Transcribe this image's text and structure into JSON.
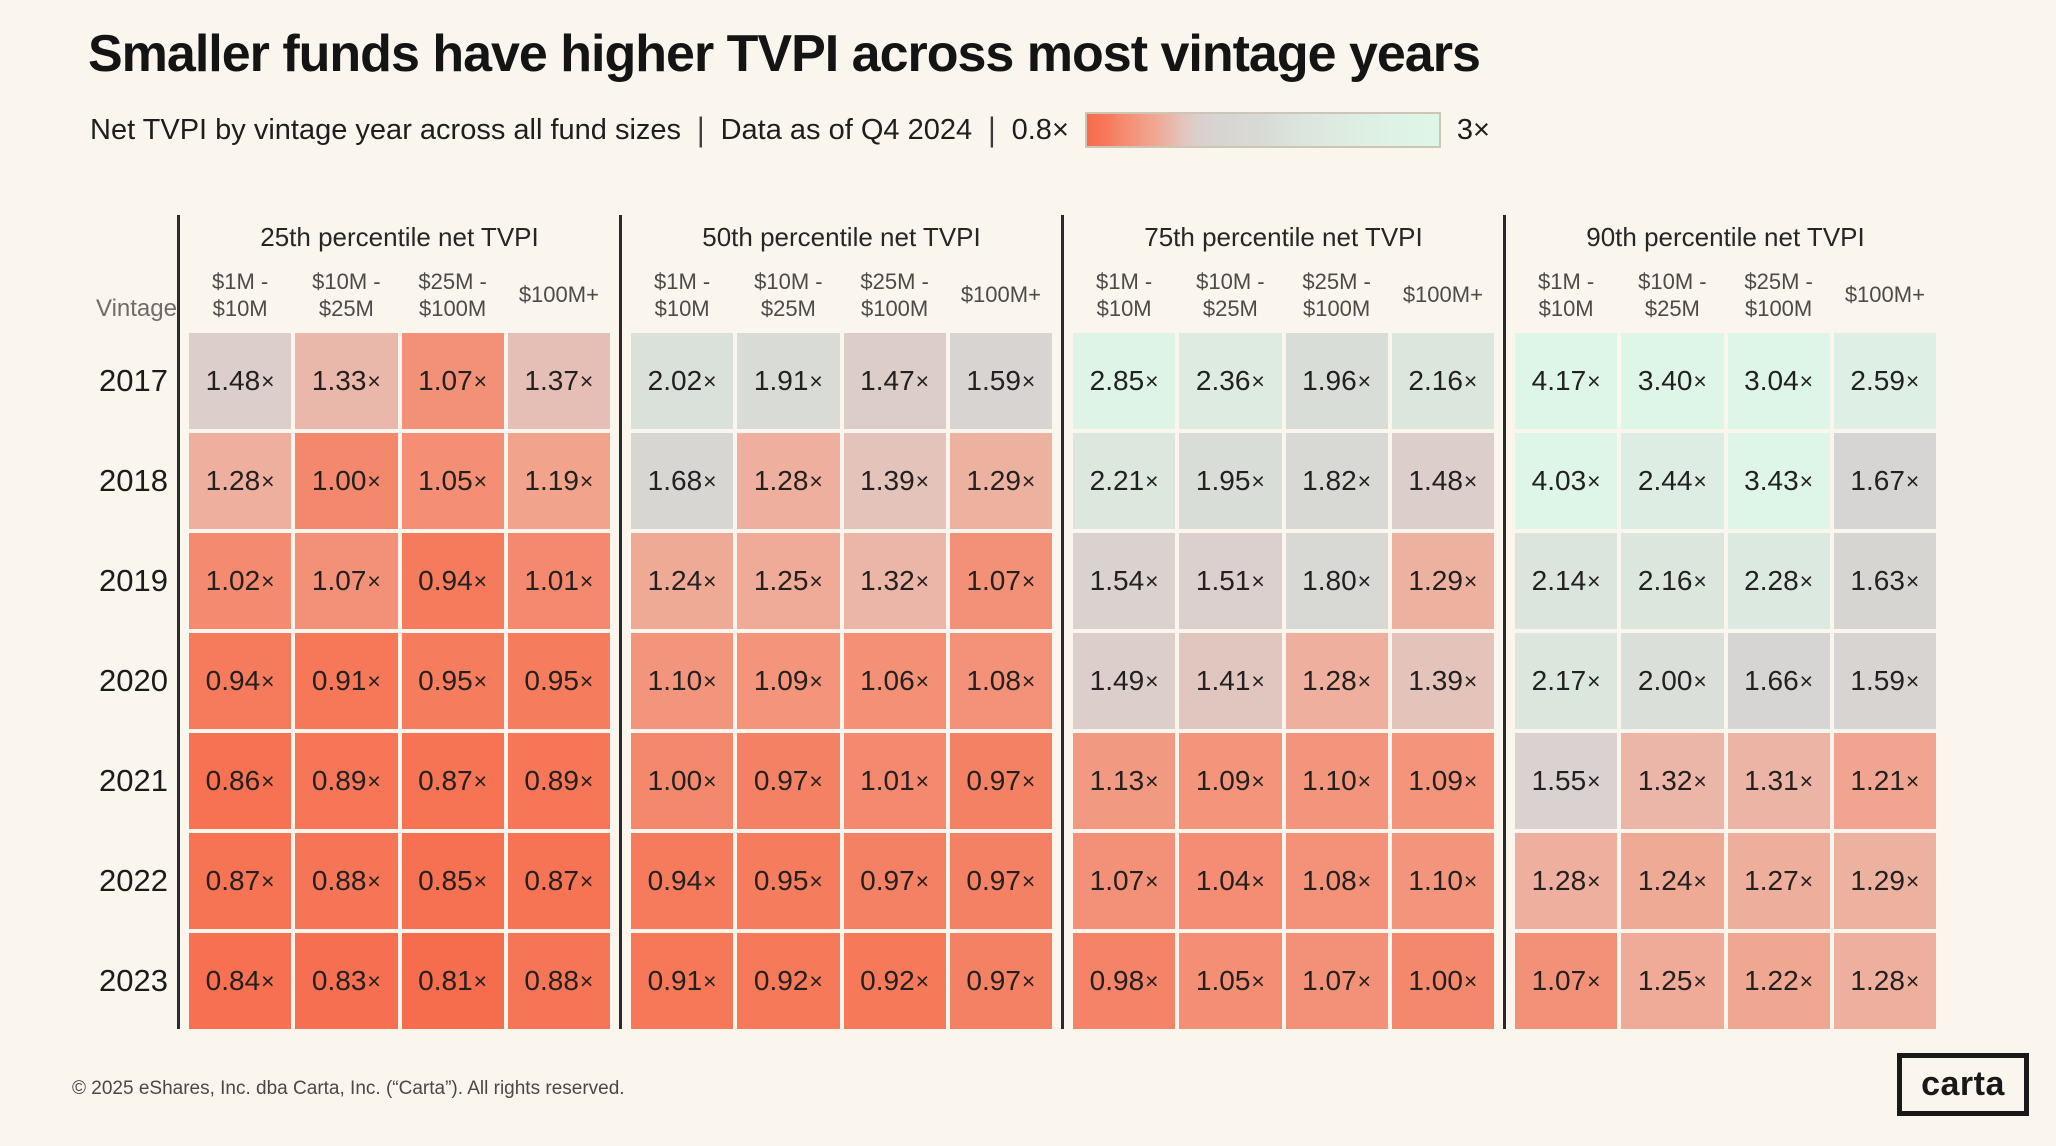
{
  "chart_data": {
    "type": "heatmap",
    "title": "Smaller funds have higher TVPI across most vintage years",
    "subtitle": "Net TVPI by vintage year across all fund sizes",
    "data_as_of": "Data as of Q4 2024",
    "separator": "|",
    "value_suffix": "×",
    "row_axis_label": "Vintage",
    "legend": {
      "min_label": "0.8×",
      "max_label": "3×",
      "domain": [
        0.8,
        3.0
      ]
    },
    "groups": [
      "25th percentile net TVPI",
      "50th percentile net TVPI",
      "75th percentile net TVPI",
      "90th percentile net TVPI"
    ],
    "columns": [
      "$1M -\n$10M",
      "$10M -\n$25M",
      "$25M -\n$100M",
      "$100M+"
    ],
    "rows": [
      "2017",
      "2018",
      "2019",
      "2020",
      "2021",
      "2022",
      "2023"
    ],
    "values": [
      [
        1.48,
        1.33,
        1.07,
        1.37,
        2.02,
        1.91,
        1.47,
        1.59,
        2.85,
        2.36,
        1.96,
        2.16,
        4.17,
        3.4,
        3.04,
        2.59
      ],
      [
        1.28,
        1.0,
        1.05,
        1.19,
        1.68,
        1.28,
        1.39,
        1.29,
        2.21,
        1.95,
        1.82,
        1.48,
        4.03,
        2.44,
        3.43,
        1.67
      ],
      [
        1.02,
        1.07,
        0.94,
        1.01,
        1.24,
        1.25,
        1.32,
        1.07,
        1.54,
        1.51,
        1.8,
        1.29,
        2.14,
        2.16,
        2.28,
        1.63
      ],
      [
        0.94,
        0.91,
        0.95,
        0.95,
        1.1,
        1.09,
        1.06,
        1.08,
        1.49,
        1.41,
        1.28,
        1.39,
        2.17,
        2.0,
        1.66,
        1.59
      ],
      [
        0.86,
        0.89,
        0.87,
        0.89,
        1.0,
        0.97,
        1.01,
        0.97,
        1.13,
        1.09,
        1.1,
        1.09,
        1.55,
        1.32,
        1.31,
        1.21
      ],
      [
        0.87,
        0.88,
        0.85,
        0.87,
        0.94,
        0.95,
        0.97,
        0.97,
        1.07,
        1.04,
        1.08,
        1.1,
        1.28,
        1.24,
        1.27,
        1.29
      ],
      [
        0.84,
        0.83,
        0.81,
        0.88,
        0.91,
        0.92,
        0.92,
        0.97,
        0.98,
        1.05,
        1.07,
        1.0,
        1.07,
        1.25,
        1.22,
        1.28
      ]
    ],
    "color_stops": [
      [
        0.8,
        "#f66c4c"
      ],
      [
        0.95,
        "#f67c5e"
      ],
      [
        1.0,
        "#f4886d"
      ],
      [
        1.1,
        "#f3957c"
      ],
      [
        1.2,
        "#f1a48e"
      ],
      [
        1.3,
        "#edb2a2"
      ],
      [
        1.4,
        "#e2c5bd"
      ],
      [
        1.5,
        "#dbd0cd"
      ],
      [
        1.6,
        "#d7d4d2"
      ],
      [
        1.9,
        "#d8dad6"
      ],
      [
        2.1,
        "#dbe4dc"
      ],
      [
        2.4,
        "#ddece2"
      ],
      [
        2.7,
        "#def2e6"
      ],
      [
        3.0,
        "#def6e8"
      ]
    ]
  },
  "footer": {
    "copyright": "© 2025 eShares, Inc. dba Carta, Inc. (“Carta”). All rights reserved.",
    "logo_text": "carta"
  }
}
